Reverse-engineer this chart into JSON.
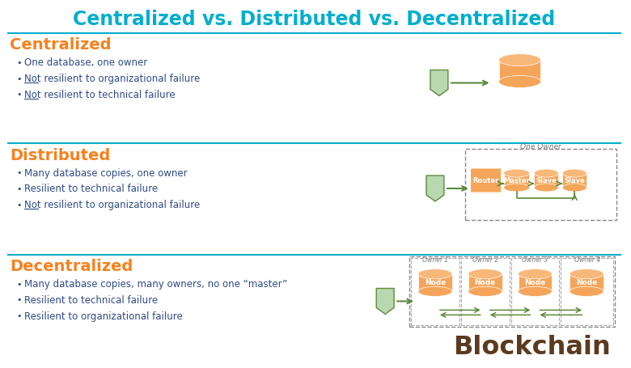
{
  "title": "Centralized vs. Distributed vs. Decentralized",
  "title_color": "#00AECC",
  "bg_color": "#FFFFFF",
  "section_orange": "#F5821E",
  "bullet_color": "#2E4A87",
  "divider_color": "#00AECC",
  "orange_shape": "#F5A55A",
  "orange_top": "#F8B87A",
  "green_arrow": "#5C8A3C",
  "green_box": "#B8D8B0",
  "green_box_border": "#5C8A3C",
  "node_label_color": "#FFFFFF",
  "blockchain_color": "#5C3A1E",
  "owner_label_color": "#777777",
  "sections": [
    {
      "name": "Centralized",
      "bullets": [
        {
          "text": "One database, one owner",
          "underline": false
        },
        {
          "text": "Not resilient to organizational failure",
          "underline": true
        },
        {
          "text": "Not resilient to technical failure",
          "underline": true
        }
      ]
    },
    {
      "name": "Distributed",
      "bullets": [
        {
          "text": "Many database copies, one owner",
          "underline": false
        },
        {
          "text": "Resilient to technical failure",
          "underline": false
        },
        {
          "text": "Not resilient to organizational failure",
          "underline": true
        }
      ]
    },
    {
      "name": "Decentralized",
      "bullets": [
        {
          "text": "Many database copies, many owners, no one “master”",
          "underline": false
        },
        {
          "text": "Resilient to technical failure",
          "underline": false
        },
        {
          "text": "Resilient to organizational failure",
          "underline": false
        }
      ]
    }
  ]
}
